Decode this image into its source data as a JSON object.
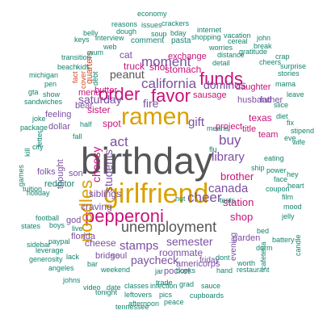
{
  "palette": {
    "gray": "#555555",
    "orange": "#d9a000",
    "magenta": "#c8127a",
    "purple": "#7b4fa2",
    "blue": "#3b5ba5",
    "teal": "#13846f",
    "red": "#d04a1f",
    "brown": "#8a5a2b",
    "green": "#4d8a2e"
  },
  "words": [
    {
      "text": "birthday",
      "color": "gray"
    },
    {
      "text": "girlfriend",
      "color": "orange"
    },
    {
      "text": "ramen",
      "color": "orange"
    },
    {
      "text": "order",
      "color": "magenta"
    },
    {
      "text": "favor",
      "color": "magenta"
    },
    {
      "text": "funds",
      "color": "magenta"
    },
    {
      "text": "pepperoni",
      "color": "magenta"
    },
    {
      "text": "noodles",
      "color": "orange"
    },
    {
      "text": "california",
      "color": "purple"
    },
    {
      "text": "moment",
      "color": "purple"
    },
    {
      "text": "unemployment",
      "color": "gray"
    },
    {
      "text": "cheer",
      "color": "purple"
    },
    {
      "text": "act",
      "color": "purple"
    },
    {
      "text": "buy",
      "color": "purple"
    },
    {
      "text": "fire",
      "color": "purple"
    },
    {
      "text": "gift",
      "color": "purple"
    },
    {
      "text": "library",
      "color": "purple"
    },
    {
      "text": "canada",
      "color": "purple"
    },
    {
      "text": "stamps",
      "color": "purple"
    },
    {
      "text": "semester",
      "color": "purple"
    },
    {
      "text": "paycheck",
      "color": "purple"
    },
    {
      "text": "dominos",
      "color": "purple"
    },
    {
      "text": "saturday",
      "color": "purple"
    },
    {
      "text": "peanut",
      "color": "gray"
    },
    {
      "text": "exchange",
      "color": "magenta"
    },
    {
      "text": "stomach",
      "color": "magenta"
    },
    {
      "text": "truck",
      "color": "magenta"
    },
    {
      "text": "shot",
      "color": "magenta"
    },
    {
      "text": "sister",
      "color": "magenta"
    },
    {
      "text": "spot",
      "color": "magenta"
    },
    {
      "text": "menu",
      "color": "magenta"
    },
    {
      "text": "butter",
      "color": "magenta"
    },
    {
      "text": "sausage",
      "color": "magenta"
    },
    {
      "text": "project",
      "color": "magenta"
    },
    {
      "text": "brother",
      "color": "magenta"
    },
    {
      "text": "station",
      "color": "magenta"
    },
    {
      "text": "shop",
      "color": "magenta"
    },
    {
      "text": "daughter",
      "color": "magenta"
    },
    {
      "text": "texas",
      "color": "magenta"
    },
    {
      "text": "title",
      "color": "magenta"
    },
    {
      "text": "team",
      "color": "magenta"
    },
    {
      "text": "cheesy",
      "color": "magenta"
    },
    {
      "text": "students",
      "color": "purple"
    },
    {
      "text": "siblings",
      "color": "purple"
    },
    {
      "text": "craving",
      "color": "purple"
    },
    {
      "text": "cheese",
      "color": "purple"
    },
    {
      "text": "roommate",
      "color": "purple"
    },
    {
      "text": "americorps",
      "color": "purple"
    },
    {
      "text": "bridge",
      "color": "purple"
    },
    {
      "text": "soul",
      "color": "purple"
    },
    {
      "text": "pocket",
      "color": "purple"
    },
    {
      "text": "florida",
      "color": "purple"
    },
    {
      "text": "cat",
      "color": "purple"
    },
    {
      "text": "bear",
      "color": "purple"
    },
    {
      "text": "dollar",
      "color": "purple"
    },
    {
      "text": "feeling",
      "color": "purple"
    },
    {
      "text": "son",
      "color": "purple"
    },
    {
      "text": "god",
      "color": "purple"
    },
    {
      "text": "husband",
      "color": "purple"
    },
    {
      "text": "father",
      "color": "purple"
    },
    {
      "text": "garden",
      "color": "purple"
    },
    {
      "text": "friday",
      "color": "purple"
    },
    {
      "text": "evening",
      "color": "purple"
    },
    {
      "text": "thought",
      "color": "purple"
    },
    {
      "text": "folks",
      "color": "purple"
    },
    {
      "text": "quarters",
      "color": "red"
    },
    {
      "text": "redditor",
      "color": "teal"
    },
    {
      "text": "comment",
      "color": "teal"
    },
    {
      "text": "pasta",
      "color": "teal"
    },
    {
      "text": "shopping",
      "color": "teal"
    },
    {
      "text": "worries",
      "color": "teal"
    },
    {
      "text": "distance",
      "color": "teal"
    },
    {
      "text": "gratitude",
      "color": "teal"
    },
    {
      "text": "detail",
      "color": "teal"
    },
    {
      "text": "sandwiches",
      "color": "teal"
    },
    {
      "text": "eating",
      "color": "teal"
    },
    {
      "text": "power",
      "color": "teal"
    },
    {
      "text": "coupon",
      "color": "teal"
    },
    {
      "text": "infection",
      "color": "teal"
    },
    {
      "text": "classes",
      "color": "teal"
    },
    {
      "text": "trade",
      "color": "teal"
    },
    {
      "text": "grad",
      "color": "teal"
    },
    {
      "text": "sauce",
      "color": "teal"
    },
    {
      "text": "books",
      "color": "teal"
    },
    {
      "text": "hand",
      "color": "teal"
    },
    {
      "text": "dont",
      "color": "teal"
    },
    {
      "text": "hut",
      "color": "teal"
    },
    {
      "text": "bar",
      "color": "teal"
    },
    {
      "text": "lack",
      "color": "teal"
    },
    {
      "text": "paypal",
      "color": "teal"
    },
    {
      "text": "football",
      "color": "teal"
    },
    {
      "text": "holiday",
      "color": "teal"
    },
    {
      "text": "weekend",
      "color": "teal"
    },
    {
      "text": "economy",
      "color": "teal"
    },
    {
      "text": "reasons",
      "color": "teal"
    },
    {
      "text": "issues",
      "color": "teal"
    },
    {
      "text": "crackers",
      "color": "teal"
    },
    {
      "text": "bday",
      "color": "teal"
    },
    {
      "text": "internet",
      "color": "teal"
    },
    {
      "text": "dough",
      "color": "teal"
    },
    {
      "text": "soup",
      "color": "teal"
    },
    {
      "text": "cereal",
      "color": "teal"
    },
    {
      "text": "interview",
      "color": "teal"
    },
    {
      "text": "keys",
      "color": "teal"
    },
    {
      "text": "web",
      "color": "teal"
    },
    {
      "text": "belly",
      "color": "teal"
    },
    {
      "text": "mum",
      "color": "teal"
    },
    {
      "text": "transition",
      "color": "teal"
    },
    {
      "text": "beach",
      "color": "teal"
    },
    {
      "text": "kids",
      "color": "teal"
    },
    {
      "text": "michigan",
      "color": "teal"
    },
    {
      "text": "pen",
      "color": "teal"
    },
    {
      "text": "gta",
      "color": "teal"
    },
    {
      "text": "show",
      "color": "teal"
    },
    {
      "text": "package",
      "color": "teal"
    },
    {
      "text": "joke",
      "color": "teal"
    },
    {
      "text": "kill",
      "color": "teal"
    },
    {
      "text": "letter",
      "color": "teal"
    },
    {
      "text": "games",
      "color": "teal"
    },
    {
      "text": "tuition",
      "color": "teal"
    },
    {
      "text": "states",
      "color": "teal"
    },
    {
      "text": "sidebar",
      "color": "teal"
    },
    {
      "text": "leverage",
      "color": "teal"
    },
    {
      "text": "generosity",
      "color": "teal"
    },
    {
      "text": "angeles",
      "color": "teal"
    },
    {
      "text": "johns",
      "color": "teal"
    },
    {
      "text": "video",
      "color": "teal"
    },
    {
      "text": "date",
      "color": "teal"
    },
    {
      "text": "tonight",
      "color": "teal"
    },
    {
      "text": "leftovers",
      "color": "teal"
    },
    {
      "text": "afternoon",
      "color": "teal"
    },
    {
      "text": "tennessee",
      "color": "teal"
    },
    {
      "text": "pics",
      "color": "teal"
    },
    {
      "text": "peace",
      "color": "teal"
    },
    {
      "text": "cupboards",
      "color": "teal"
    },
    {
      "text": "restaurant",
      "color": "teal"
    },
    {
      "text": "worth",
      "color": "teal"
    },
    {
      "text": "dorm",
      "color": "teal"
    },
    {
      "text": "bed",
      "color": "teal"
    },
    {
      "text": "battery",
      "color": "teal"
    },
    {
      "text": "mood",
      "color": "teal"
    },
    {
      "text": "jelly",
      "color": "teal"
    },
    {
      "text": "heart",
      "color": "teal"
    },
    {
      "text": "film",
      "color": "teal"
    },
    {
      "text": "hey",
      "color": "teal"
    },
    {
      "text": "eve",
      "color": "teal"
    },
    {
      "text": "stipend",
      "color": "teal"
    },
    {
      "text": "fix",
      "color": "teal"
    },
    {
      "text": "diet",
      "color": "teal"
    },
    {
      "text": "slice",
      "color": "teal"
    },
    {
      "text": "leave",
      "color": "teal"
    },
    {
      "text": "mama",
      "color": "teal"
    },
    {
      "text": "stories",
      "color": "teal"
    },
    {
      "text": "surprise",
      "color": "teal"
    },
    {
      "text": "cheers",
      "color": "teal"
    },
    {
      "text": "crap",
      "color": "teal"
    },
    {
      "text": "break",
      "color": "teal"
    },
    {
      "text": "john",
      "color": "teal"
    },
    {
      "text": "vacation",
      "color": "teal"
    },
    {
      "text": "tests",
      "color": "teal"
    },
    {
      "text": "means",
      "color": "teal"
    },
    {
      "text": "flu",
      "color": "teal"
    },
    {
      "text": "fall",
      "color": "teal"
    },
    {
      "text": "half",
      "color": "teal"
    },
    {
      "text": "live",
      "color": "teal"
    },
    {
      "text": "boys",
      "color": "teal"
    },
    {
      "text": "city",
      "color": "teal"
    },
    {
      "text": "cover",
      "color": "red"
    },
    {
      "text": "debt",
      "color": "teal"
    },
    {
      "text": "fact",
      "color": "red"
    },
    {
      "text": "face",
      "color": "teal"
    },
    {
      "text": "cafeteria",
      "color": "teal"
    },
    {
      "text": "candle",
      "color": "teal"
    },
    {
      "text": "jar",
      "color": "teal"
    },
    {
      "text": "wife",
      "color": "teal"
    },
    {
      "text": "ship",
      "color": "teal"
    }
  ]
}
